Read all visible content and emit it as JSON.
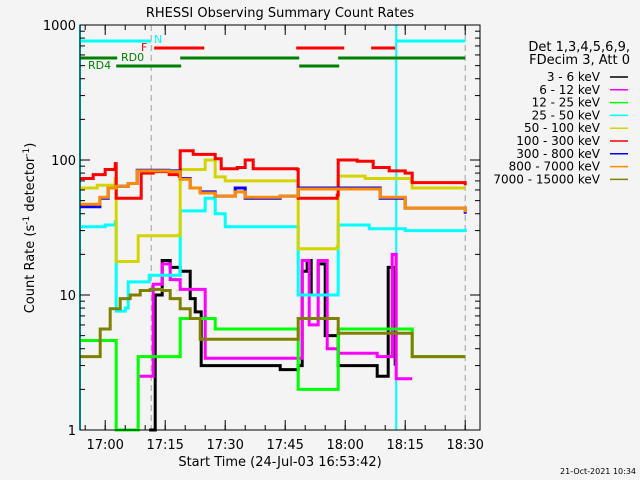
{
  "chart_data": {
    "type": "line",
    "title": "RHESSI Observing Summary Count Rates",
    "xlabel": "Start Time (24-Jul-03 16:53:42)",
    "ylabel": "Count Rate (s⁻¹ detector⁻¹)",
    "ylabel_parts": {
      "a": "Count Rate (s",
      "b": "-1",
      "c": " detector",
      "d": "-1",
      "e": ")"
    },
    "xlim": [
      "16:53:42",
      "18:33:42"
    ],
    "ylim": [
      1,
      1000
    ],
    "yscale": "log",
    "x_ticks": [
      "17:00",
      "17:15",
      "17:30",
      "17:45",
      "18:00",
      "18:15",
      "18:30"
    ],
    "y_ticks": [
      {
        "value": 1,
        "label": "1"
      },
      {
        "value": 10,
        "label": "10"
      },
      {
        "value": 100,
        "label": "100"
      },
      {
        "value": 1000,
        "label": "1000"
      }
    ],
    "legend": {
      "position": "right",
      "header": [
        "Det 1,3,4,5,6,9,",
        "FDecim 3, Att 0"
      ]
    },
    "series": [
      {
        "name": "3 - 6 keV",
        "color": "#000000",
        "points": [
          [
            "17:11:00",
            0.8
          ],
          [
            "17:12:30",
            10
          ],
          [
            "17:14:15",
            18
          ],
          [
            "17:16:15",
            16
          ],
          [
            "17:18:45",
            15
          ],
          [
            "17:21:15",
            9.4
          ],
          [
            "17:22:30",
            7.5
          ],
          [
            "17:24:00",
            3
          ],
          [
            "17:43:45",
            2.8
          ],
          [
            "17:48:15",
            3
          ],
          [
            "17:49:15",
            15
          ],
          [
            "17:50:30",
            18
          ],
          [
            "17:51:30",
            10
          ],
          [
            "17:53:15",
            17
          ],
          [
            "17:55:00",
            5
          ],
          [
            "17:58:15",
            3
          ],
          [
            "18:08:00",
            2.5
          ],
          [
            "18:10:45",
            16
          ],
          [
            "18:12:30",
            3
          ]
        ]
      },
      {
        "name": "6 - 12 keV",
        "color": "#ff00ff",
        "points": [
          [
            "17:08:00",
            2.5
          ],
          [
            "17:11:00",
            2.5
          ],
          [
            "17:12:00",
            12
          ],
          [
            "17:14:15",
            17
          ],
          [
            "17:16:15",
            13
          ],
          [
            "17:18:45",
            11
          ],
          [
            "17:23:45",
            11
          ],
          [
            "17:25:00",
            3.4
          ],
          [
            "17:48:00",
            3.4
          ],
          [
            "17:49:15",
            18
          ],
          [
            "17:51:00",
            6
          ],
          [
            "17:53:15",
            18
          ],
          [
            "17:55:30",
            4
          ],
          [
            "17:58:15",
            3.7
          ],
          [
            "18:08:00",
            3.5
          ],
          [
            "18:11:45",
            20
          ],
          [
            "18:12:45",
            2.4
          ],
          [
            "18:16:45",
            2.4
          ]
        ]
      },
      {
        "name": "12 - 25 keV",
        "color": "#00ff00",
        "points": [
          [
            "16:53:42",
            4.6
          ],
          [
            "17:02:30",
            4.6
          ],
          [
            "17:02:45",
            0.9
          ],
          [
            "17:08:00",
            0.9
          ],
          [
            "17:08:15",
            3.5
          ],
          [
            "17:18:30",
            3.5
          ],
          [
            "17:18:45",
            6.7
          ],
          [
            "17:27:30",
            5.6
          ],
          [
            "17:48:00",
            5.6
          ],
          [
            "17:48:15",
            2
          ],
          [
            "17:58:00",
            2
          ],
          [
            "17:58:15",
            5.6
          ],
          [
            "18:15:00",
            5.6
          ],
          [
            "18:16:45",
            3.5
          ],
          [
            "18:30:00",
            3.5
          ]
        ]
      },
      {
        "name": "25 - 50 keV",
        "color": "#00ffff",
        "points": [
          [
            "16:53:42",
            32
          ],
          [
            "17:00:00",
            33
          ],
          [
            "17:02:30",
            35
          ],
          [
            "17:02:45",
            7.6
          ],
          [
            "17:05:00",
            8
          ],
          [
            "17:05:45",
            12.5
          ],
          [
            "17:08:00",
            12.5
          ],
          [
            "17:11:00",
            14
          ],
          [
            "17:18:30",
            14
          ],
          [
            "17:18:45",
            42
          ],
          [
            "17:25:00",
            52
          ],
          [
            "17:27:30",
            40
          ],
          [
            "17:30:00",
            32
          ],
          [
            "17:48:00",
            32
          ],
          [
            "17:48:15",
            10
          ],
          [
            "17:58:00",
            10
          ],
          [
            "17:58:15",
            33
          ],
          [
            "18:06:00",
            31
          ],
          [
            "18:15:00",
            30
          ],
          [
            "18:30:00",
            31
          ]
        ]
      },
      {
        "name": "50 - 100 keV",
        "color": "#d4d400",
        "points": [
          [
            "16:53:42",
            62
          ],
          [
            "16:58:00",
            65
          ],
          [
            "17:02:30",
            73
          ],
          [
            "17:02:45",
            17.7
          ],
          [
            "17:08:00",
            17.7
          ],
          [
            "17:08:15",
            27.5
          ],
          [
            "17:18:30",
            28
          ],
          [
            "17:18:45",
            85
          ],
          [
            "17:25:00",
            100
          ],
          [
            "17:27:30",
            75
          ],
          [
            "17:30:00",
            70
          ],
          [
            "17:48:00",
            70
          ],
          [
            "17:48:15",
            22
          ],
          [
            "17:58:00",
            23
          ],
          [
            "17:58:15",
            76
          ],
          [
            "18:05:00",
            73
          ],
          [
            "18:16:30",
            70
          ],
          [
            "18:16:45",
            62
          ],
          [
            "18:30:00",
            62
          ]
        ]
      },
      {
        "name": "100 - 300 keV",
        "color": "#ff0000",
        "points": [
          [
            "16:53:42",
            73
          ],
          [
            "16:57:00",
            78
          ],
          [
            "17:00:00",
            85
          ],
          [
            "17:02:30",
            94
          ],
          [
            "17:02:45",
            52
          ],
          [
            "17:05:45",
            52
          ],
          [
            "17:09:00",
            80
          ],
          [
            "17:12:00",
            82
          ],
          [
            "17:16:00",
            78
          ],
          [
            "17:18:30",
            76
          ],
          [
            "17:18:45",
            117
          ],
          [
            "17:22:00",
            110
          ],
          [
            "17:27:30",
            102
          ],
          [
            "17:29:00",
            86
          ],
          [
            "17:33:00",
            88
          ],
          [
            "17:35:00",
            100
          ],
          [
            "17:37:00",
            86
          ],
          [
            "17:48:00",
            85
          ],
          [
            "17:48:15",
            52
          ],
          [
            "17:58:00",
            55
          ],
          [
            "17:58:15",
            100
          ],
          [
            "18:03:00",
            98
          ],
          [
            "18:07:00",
            88
          ],
          [
            "18:11:00",
            83
          ],
          [
            "18:15:00",
            80
          ],
          [
            "18:16:45",
            68
          ],
          [
            "18:30:00",
            65
          ]
        ]
      },
      {
        "name": "300 - 800 keV",
        "color": "#0000ff",
        "points": [
          [
            "16:53:42",
            45
          ],
          [
            "16:58:40",
            52
          ],
          [
            "17:00:45",
            62
          ],
          [
            "17:02:45",
            64
          ],
          [
            "17:05:45",
            67
          ],
          [
            "17:08:00",
            84
          ],
          [
            "17:16:00",
            83
          ],
          [
            "17:18:45",
            73
          ],
          [
            "17:21:15",
            62
          ],
          [
            "17:23:45",
            58
          ],
          [
            "17:27:30",
            54
          ],
          [
            "17:32:30",
            62
          ],
          [
            "17:35:00",
            52
          ],
          [
            "17:43:45",
            54
          ],
          [
            "17:48:15",
            62
          ],
          [
            "17:58:15",
            62
          ],
          [
            "18:08:45",
            52
          ],
          [
            "18:15:00",
            44
          ],
          [
            "18:30:00",
            40
          ]
        ]
      },
      {
        "name": "800 - 7000 keV",
        "color": "#ff8c00",
        "points": [
          [
            "16:53:42",
            47
          ],
          [
            "16:58:40",
            53
          ],
          [
            "17:00:45",
            62
          ],
          [
            "17:02:45",
            64
          ],
          [
            "17:05:45",
            67
          ],
          [
            "17:08:00",
            83
          ],
          [
            "17:16:00",
            82
          ],
          [
            "17:18:45",
            72
          ],
          [
            "17:21:15",
            62
          ],
          [
            "17:23:45",
            57
          ],
          [
            "17:27:30",
            54
          ],
          [
            "17:32:30",
            58
          ],
          [
            "17:35:00",
            53
          ],
          [
            "17:43:45",
            54
          ],
          [
            "17:48:15",
            61
          ],
          [
            "17:58:15",
            61
          ],
          [
            "18:08:45",
            53
          ],
          [
            "18:15:00",
            44
          ],
          [
            "18:30:00",
            41
          ]
        ]
      },
      {
        "name": "7000 - 15000 keV",
        "color": "#808000",
        "points": [
          [
            "16:53:42",
            3.5
          ],
          [
            "16:57:30",
            3.5
          ],
          [
            "16:58:45",
            5.6
          ],
          [
            "17:01:15",
            7.9
          ],
          [
            "17:03:45",
            9.4
          ],
          [
            "17:06:15",
            10
          ],
          [
            "17:08:45",
            10.8
          ],
          [
            "17:11:15",
            11
          ],
          [
            "17:14:15",
            10.8
          ],
          [
            "17:16:15",
            9.4
          ],
          [
            "17:18:45",
            7.9
          ],
          [
            "17:21:15",
            6.7
          ],
          [
            "17:23:45",
            4.7
          ],
          [
            "17:43:45",
            4.7
          ],
          [
            "17:48:15",
            6.7
          ],
          [
            "17:58:15",
            5.2
          ],
          [
            "18:16:30",
            5.2
          ],
          [
            "18:16:45",
            3.5
          ],
          [
            "18:30:00",
            3.5
          ]
        ]
      }
    ],
    "flags": [
      {
        "label": "N",
        "color": "#00ffff",
        "row": 0,
        "intervals": [
          [
            "16:53:42",
            "17:11:30"
          ],
          [
            "18:12:45",
            "18:30:00"
          ]
        ]
      },
      {
        "label": "F",
        "color": "#ff0000",
        "row": 1,
        "intervals": [
          [
            "17:12:15",
            "17:24:45"
          ],
          [
            "17:47:45",
            "17:59:45"
          ],
          [
            "18:06:30",
            "18:12:30"
          ]
        ]
      },
      {
        "label": "RD0",
        "color": "#008000",
        "row": 2,
        "intervals": [
          [
            "16:53:42",
            "17:03:00"
          ],
          [
            "17:18:45",
            "17:48:30"
          ],
          [
            "17:58:15",
            "18:30:00"
          ]
        ]
      },
      {
        "label": "RD4",
        "color": "#008000",
        "row": 3,
        "intervals": [
          [
            "17:02:45",
            "17:19:00"
          ],
          [
            "17:48:30",
            "17:58:30"
          ]
        ]
      }
    ],
    "vertical_lines": [
      {
        "time": "17:11:30",
        "style": "dashed",
        "color": "#a0a0a0"
      },
      {
        "time": "18:30:00",
        "style": "dashed",
        "color": "#a0a0a0"
      },
      {
        "time": "16:53:42",
        "style": "solid",
        "color": "#00ffff"
      },
      {
        "time": "18:12:45",
        "style": "solid",
        "color": "#00ffff"
      }
    ]
  },
  "footer": {
    "timestamp": "21-Oct-2021 10:34"
  }
}
